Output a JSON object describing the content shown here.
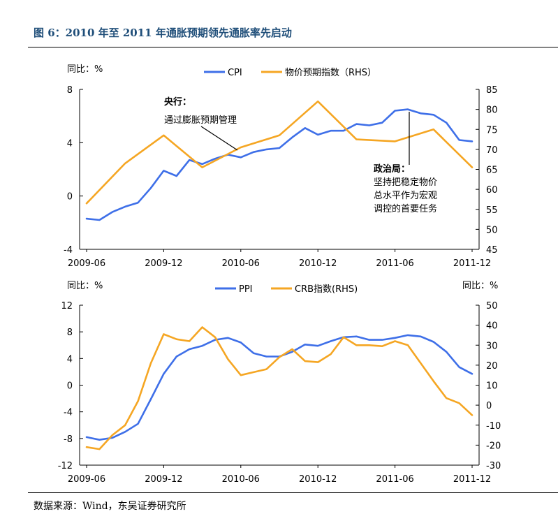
{
  "title": "图 6：2010 年至 2011 年通胀预期领先通胀率先启动",
  "source": "数据来源：Wind，东吴证券研究所",
  "colors": {
    "blue": "#3E6FE8",
    "orange": "#F5A623"
  },
  "chart_data": [
    {
      "type": "line",
      "ylabel_left": "同比：%",
      "ylim_left": [
        -4,
        8
      ],
      "yticks_left": [
        -4,
        0,
        4,
        8
      ],
      "ylim_right": [
        45,
        85
      ],
      "yticks_right": [
        45,
        50,
        55,
        60,
        65,
        70,
        75,
        80,
        85
      ],
      "x_ticks": [
        "2009-06",
        "2009-12",
        "2010-06",
        "2010-12",
        "2011-06",
        "2011-12"
      ],
      "x": [
        "2009-06",
        "2009-07",
        "2009-08",
        "2009-09",
        "2009-10",
        "2009-11",
        "2009-12",
        "2010-01",
        "2010-02",
        "2010-03",
        "2010-04",
        "2010-05",
        "2010-06",
        "2010-07",
        "2010-08",
        "2010-09",
        "2010-10",
        "2010-11",
        "2010-12",
        "2011-01",
        "2011-02",
        "2011-03",
        "2011-04",
        "2011-05",
        "2011-06",
        "2011-07",
        "2011-08",
        "2011-09",
        "2011-10",
        "2011-11",
        "2011-12"
      ],
      "series": [
        {
          "name": "CPI",
          "axis": "left",
          "color": "#3E6FE8",
          "values": [
            -1.7,
            -1.8,
            -1.2,
            -0.8,
            -0.5,
            0.6,
            1.9,
            1.5,
            2.7,
            2.4,
            2.8,
            3.1,
            2.9,
            3.3,
            3.5,
            3.6,
            4.4,
            5.1,
            4.6,
            4.9,
            4.9,
            5.4,
            5.3,
            5.5,
            6.4,
            6.5,
            6.2,
            6.1,
            5.5,
            4.2,
            4.1
          ]
        },
        {
          "name": "物价预期指数（RHS）",
          "axis": "right",
          "color": "#F5A623",
          "values": [
            56.5,
            null,
            null,
            66.5,
            null,
            null,
            73.5,
            null,
            null,
            65.5,
            null,
            null,
            70.5,
            null,
            null,
            73.5,
            null,
            null,
            82,
            null,
            null,
            72.5,
            null,
            null,
            72,
            null,
            null,
            75,
            null,
            null,
            65.5
          ]
        }
      ],
      "annotations": [
        {
          "title": "央行：",
          "lines": [
            "通过膨胀预期管理"
          ]
        },
        {
          "title": "政治局：",
          "lines": [
            "坚持把稳定物价",
            "总水平作为宏观",
            "调控的首要任务"
          ]
        }
      ]
    },
    {
      "type": "line",
      "ylabel_left": "同比：%",
      "ylabel_right": "同比：%",
      "ylim_left": [
        -12,
        12
      ],
      "yticks_left": [
        -12,
        -8,
        -4,
        0,
        4,
        8,
        12
      ],
      "ylim_right": [
        -30,
        50
      ],
      "yticks_right": [
        -30,
        -20,
        -10,
        0,
        10,
        20,
        30,
        40,
        50
      ],
      "x_ticks": [
        "2009-06",
        "2009-12",
        "2010-06",
        "2010-12",
        "2011-06",
        "2011-12"
      ],
      "x": [
        "2009-06",
        "2009-07",
        "2009-08",
        "2009-09",
        "2009-10",
        "2009-11",
        "2009-12",
        "2010-01",
        "2010-02",
        "2010-03",
        "2010-04",
        "2010-05",
        "2010-06",
        "2010-07",
        "2010-08",
        "2010-09",
        "2010-10",
        "2010-11",
        "2010-12",
        "2011-01",
        "2011-02",
        "2011-03",
        "2011-04",
        "2011-05",
        "2011-06",
        "2011-07",
        "2011-08",
        "2011-09",
        "2011-10",
        "2011-11",
        "2011-12"
      ],
      "series": [
        {
          "name": "PPI",
          "axis": "left",
          "color": "#3E6FE8",
          "values": [
            -7.8,
            -8.2,
            -7.9,
            -7.0,
            -5.8,
            -2.1,
            1.7,
            4.3,
            5.4,
            5.9,
            6.8,
            7.1,
            6.4,
            4.8,
            4.3,
            4.3,
            5.0,
            6.1,
            5.9,
            6.6,
            7.2,
            7.3,
            6.8,
            6.8,
            7.1,
            7.5,
            7.3,
            6.5,
            5.0,
            2.7,
            1.7
          ]
        },
        {
          "name": "CRB指数(RHS)",
          "axis": "right",
          "color": "#F5A623",
          "values": [
            -21,
            -22,
            -15,
            -10,
            2,
            21,
            35.5,
            33,
            32,
            39,
            34,
            23,
            15,
            16.5,
            18,
            24,
            28,
            22,
            21.5,
            25.5,
            34,
            30,
            30,
            29.5,
            32,
            30,
            21,
            12,
            3.5,
            1,
            -5
          ]
        }
      ]
    }
  ]
}
